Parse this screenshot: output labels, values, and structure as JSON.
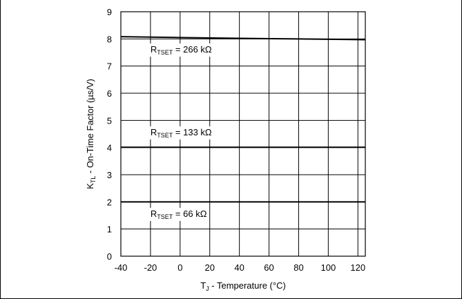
{
  "chart_data": {
    "type": "line",
    "xlabel": {
      "main": "T",
      "sub": "J",
      "rest": " - Temperature (°C)"
    },
    "ylabel": {
      "main": "K",
      "sub": "TL",
      "rest": " - On-Time Factor (µs/V)"
    },
    "xlim": [
      -40,
      125
    ],
    "ylim": [
      0,
      9
    ],
    "xticks": [
      -40,
      -20,
      0,
      20,
      40,
      60,
      80,
      100,
      120
    ],
    "yticks": [
      0,
      1,
      2,
      3,
      4,
      5,
      6,
      7,
      8,
      9
    ],
    "grid": true,
    "series": [
      {
        "label": {
          "main": "R",
          "sub": "TSET",
          "rest": " = 266 kΩ"
        },
        "label_at": [
          -20,
          7.5
        ],
        "x": [
          -40,
          0,
          40,
          80,
          125
        ],
        "y": [
          8.08,
          8.05,
          8.02,
          8.0,
          7.97
        ]
      },
      {
        "label": {
          "main": "R",
          "sub": "TSET",
          "rest": " = 133 kΩ"
        },
        "label_at": [
          -20,
          4.45
        ],
        "x": [
          -40,
          0,
          40,
          80,
          125
        ],
        "y": [
          4.01,
          4.01,
          4.01,
          4.01,
          4.01
        ]
      },
      {
        "label": {
          "main": "R",
          "sub": "TSET",
          "rest": " = 66 kΩ"
        },
        "label_at": [
          -20,
          1.45
        ],
        "x": [
          -40,
          0,
          40,
          80,
          125
        ],
        "y": [
          2.0,
          2.0,
          2.0,
          2.0,
          2.0
        ]
      }
    ]
  }
}
